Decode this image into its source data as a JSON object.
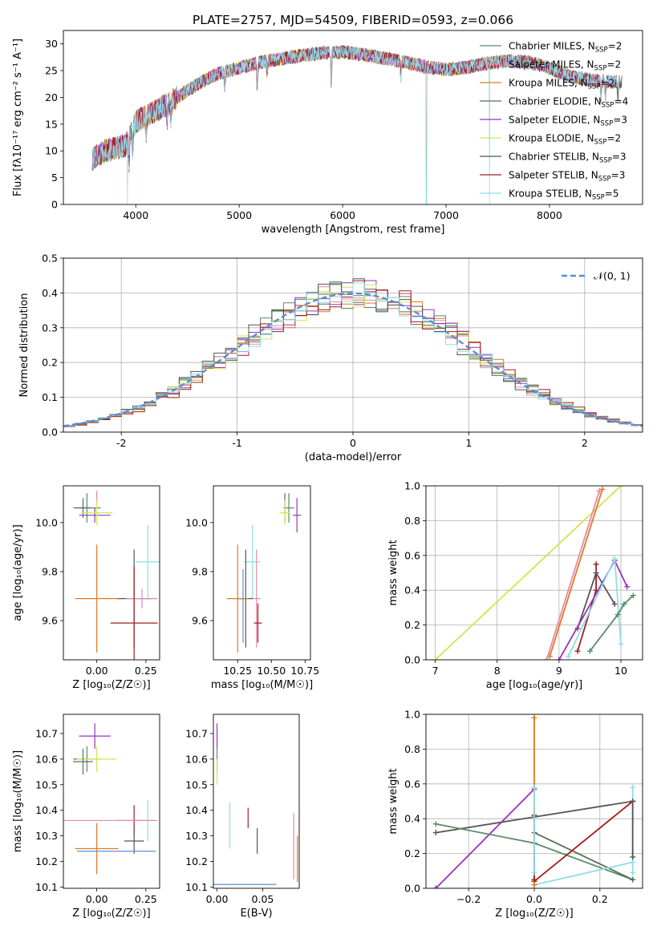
{
  "figure_title": "PLATE=2757, MJD=54509, FIBERID=0593, z=0.066",
  "colors": {
    "chabrier_miles": "#5a8c66",
    "salpeter_miles": "#e58aa8",
    "kroupa_miles": "#e07a22",
    "chabrier_elodie": "#54705a",
    "salpeter_elodie": "#9a32c0",
    "kroupa_elodie": "#cfe650",
    "chabrier_stelib": "#555555",
    "salpeter_stelib": "#a31d1d",
    "kroupa_stelib": "#8edde6",
    "normal_curve": "#5b8ed6"
  },
  "chart_data": [
    {
      "id": "spectrum",
      "type": "line",
      "xlabel": "wavelength [Angstrom, rest frame]",
      "ylabel": "Flux [fλ10⁻¹⁷ erg cm⁻² s⁻¹ A⁻¹]",
      "xlim": [
        3300,
        8900
      ],
      "ylim": [
        0,
        32.5
      ],
      "xticks": [
        4000,
        5000,
        6000,
        7000,
        8000
      ],
      "yticks": [
        0,
        5,
        10,
        15,
        20,
        25,
        30
      ],
      "continuum": [
        [
          3580,
          8.5
        ],
        [
          3700,
          10
        ],
        [
          3900,
          11
        ],
        [
          4000,
          15.5
        ],
        [
          4200,
          17.5
        ],
        [
          4400,
          20
        ],
        [
          4600,
          22.5
        ],
        [
          4800,
          24.5
        ],
        [
          5000,
          25.5
        ],
        [
          5200,
          26.5
        ],
        [
          5400,
          27.2
        ],
        [
          5600,
          27.8
        ],
        [
          5800,
          28.3
        ],
        [
          6000,
          28.5
        ],
        [
          6200,
          28.0
        ],
        [
          6400,
          27.3
        ],
        [
          6600,
          26.6
        ],
        [
          6800,
          25.7
        ],
        [
          7000,
          25.2
        ],
        [
          7200,
          25.6
        ],
        [
          7400,
          26.4
        ],
        [
          7600,
          26.8
        ],
        [
          7800,
          26.6
        ],
        [
          8000,
          25.5
        ],
        [
          8200,
          23.9
        ],
        [
          8400,
          23.2
        ],
        [
          8700,
          22.8
        ]
      ],
      "absorption": [
        [
          3934,
          5
        ],
        [
          3969,
          4
        ],
        [
          4101,
          3
        ],
        [
          4304,
          3
        ],
        [
          4340,
          3
        ],
        [
          4861,
          3
        ],
        [
          5175,
          5
        ],
        [
          5270,
          2
        ],
        [
          5890,
          6
        ],
        [
          6563,
          3
        ],
        [
          8498,
          3
        ],
        [
          8542,
          3
        ],
        [
          8662,
          3
        ]
      ],
      "glitches": [
        [
          3920,
          0
        ],
        [
          6810,
          0
        ],
        [
          7420,
          0
        ]
      ],
      "legend": [
        {
          "label": "Chabrier MILES, N",
          "sub": "SSP",
          "val": "=2",
          "color": "#5a8c66"
        },
        {
          "label": "Salpeter MILES, N",
          "sub": "SSP",
          "val": "=2",
          "color": "#e58aa8"
        },
        {
          "label": "Kroupa MILES, N",
          "sub": "SSP",
          "val": "=2",
          "color": "#e07a22"
        },
        {
          "label": "Chabrier ELODIE, N",
          "sub": "SSP",
          "val": "=4",
          "color": "#54705a"
        },
        {
          "label": "Salpeter ELODIE, N",
          "sub": "SSP",
          "val": "=3",
          "color": "#9a32c0"
        },
        {
          "label": "Kroupa ELODIE, N",
          "sub": "SSP",
          "val": "=2",
          "color": "#cfe650"
        },
        {
          "label": "Chabrier STELIB, N",
          "sub": "SSP",
          "val": "=3",
          "color": "#555555"
        },
        {
          "label": "Salpeter STELIB, N",
          "sub": "SSP",
          "val": "=3",
          "color": "#a31d1d"
        },
        {
          "label": "Kroupa STELIB, N",
          "sub": "SSP",
          "val": "=5",
          "color": "#8edde6"
        }
      ]
    },
    {
      "id": "residuals",
      "type": "histogram",
      "xlabel": "(data-model)/error",
      "ylabel": "Normed distribution",
      "xlim": [
        -2.5,
        2.5
      ],
      "ylim": [
        0,
        0.5
      ],
      "xticks": [
        -2,
        -1,
        0,
        1,
        2
      ],
      "yticks": [
        0.0,
        0.1,
        0.2,
        0.3,
        0.4,
        0.5
      ],
      "grid": true,
      "bin_width": 0.1,
      "legend_label": "𝒩(0, 1)"
    },
    {
      "id": "age-vs-z",
      "type": "errorbar",
      "xlabel": "Z [log₁₀(Z/Z☉)]",
      "ylabel": "age  [log₁₀(age/yr)]",
      "xlim": [
        -0.17,
        0.32
      ],
      "ylim": [
        9.44,
        10.15
      ],
      "xticks": [
        0.0,
        0.25
      ],
      "xticklabels": [
        "0.00",
        "0.25"
      ],
      "yticks": [
        9.6,
        9.8,
        10.0
      ],
      "yticklabels": [
        "9.6",
        "9.8",
        "10.0"
      ],
      "points": [
        {
          "x": -0.05,
          "xerr": 0.07,
          "y": 10.06,
          "yerr": 0.06,
          "color": "#5a8c66"
        },
        {
          "x": 0.0,
          "xerr": 0.0,
          "y": 10.1,
          "yerr": 0.03,
          "color": "#e58aa8"
        },
        {
          "x": -0.07,
          "xerr": 0.04,
          "y": 10.06,
          "yerr": 0.04,
          "color": "#54705a"
        },
        {
          "x": -0.01,
          "xerr": 0.08,
          "y": 10.03,
          "yerr": 0.03,
          "color": "#9a32c0"
        },
        {
          "x": 0.0,
          "xerr": 0.08,
          "y": 10.04,
          "yerr": 0.05,
          "color": "#cfe650"
        },
        {
          "x": 0.26,
          "xerr": 0.06,
          "y": 9.84,
          "yerr": 0.15,
          "color": "#8edde6"
        },
        {
          "x": 0.19,
          "xerr": 0.09,
          "y": 9.69,
          "yerr": 0.2,
          "color": "#555555"
        },
        {
          "x": 0.0,
          "xerr": 0.11,
          "y": 9.69,
          "yerr": 0.22,
          "color": "#e07a22"
        },
        {
          "x": 0.23,
          "xerr": 0.08,
          "y": 9.69,
          "yerr": 0.04,
          "color": "#e58aa8"
        },
        {
          "x": 0.19,
          "xerr": 0.12,
          "y": 9.59,
          "yerr": 0.23,
          "color": "#a31d1d"
        }
      ]
    },
    {
      "id": "age-vs-mass",
      "type": "errorbar",
      "xlabel": "mass [log₁₀(M/M☉)]",
      "ylabel": "",
      "xlim": [
        10.07,
        10.79
      ],
      "ylim": [
        9.44,
        10.15
      ],
      "xticks": [
        10.25,
        10.5,
        10.75
      ],
      "xticklabels": [
        "10.25",
        "10.50",
        "10.75"
      ],
      "yticks": [
        9.6,
        9.8,
        10.0
      ],
      "yticklabels": [
        "9.6",
        "9.8",
        "10.0"
      ],
      "points": [
        {
          "x": 10.63,
          "xerr": 0.04,
          "y": 10.06,
          "yerr": 0.06,
          "color": "#5a8c66"
        },
        {
          "x": 10.6,
          "xerr": 0.0,
          "y": 10.06,
          "yerr": 0.06,
          "color": "#54705a"
        },
        {
          "x": 10.69,
          "xerr": 0.03,
          "y": 10.03,
          "yerr": 0.07,
          "color": "#9a32c0"
        },
        {
          "x": 10.6,
          "xerr": 0.04,
          "y": 10.04,
          "yerr": 0.05,
          "color": "#cfe650"
        },
        {
          "x": 10.36,
          "xerr": 0.06,
          "y": 9.84,
          "yerr": 0.15,
          "color": "#8edde6"
        },
        {
          "x": 10.31,
          "xerr": 0.06,
          "y": 9.69,
          "yerr": 0.2,
          "color": "#555555"
        },
        {
          "x": 10.25,
          "xerr": 0.08,
          "y": 9.69,
          "yerr": 0.22,
          "color": "#e07a22"
        },
        {
          "x": 10.39,
          "xerr": 0.03,
          "y": 9.69,
          "yerr": 0.2,
          "color": "#e58aa8"
        },
        {
          "x": 10.29,
          "xerr": 0.0,
          "y": 9.66,
          "yerr": 0.15,
          "color": "#5b8ed6"
        },
        {
          "x": 10.4,
          "xerr": 0.03,
          "y": 9.59,
          "yerr": 0.08,
          "color": "#a31d1d"
        }
      ]
    },
    {
      "id": "weight-vs-age",
      "type": "line",
      "xlabel": "age  [log₁₀(age/yr)]",
      "ylabel": "mass weight",
      "xlim": [
        6.85,
        10.35
      ],
      "ylim": [
        0,
        1.0
      ],
      "xticks": [
        7,
        8,
        9,
        10
      ],
      "yticks": [
        0.0,
        0.2,
        0.4,
        0.6,
        0.8,
        1.0
      ],
      "grid": true,
      "series": [
        {
          "color": "#cfe650",
          "x": [
            7.0,
            10.0
          ],
          "y": [
            0.0,
            1.0
          ]
        },
        {
          "color": "#e07a22",
          "x": [
            8.85,
            9.7
          ],
          "y": [
            0.02,
            0.98
          ]
        },
        {
          "color": "#e58aa8",
          "x": [
            8.8,
            9.65
          ],
          "y": [
            0.0,
            0.97
          ]
        },
        {
          "color": "#a31d1d",
          "x": [
            9.3,
            9.6,
            9.6
          ],
          "y": [
            0.05,
            0.4,
            0.55
          ]
        },
        {
          "color": "#555555",
          "x": [
            9.3,
            9.6,
            9.9
          ],
          "y": [
            0.18,
            0.5,
            0.32
          ]
        },
        {
          "color": "#9a32c0",
          "x": [
            9.0,
            9.9,
            10.1
          ],
          "y": [
            0.0,
            0.57,
            0.42
          ]
        },
        {
          "color": "#8edde6",
          "x": [
            9.15,
            9.9,
            10.0
          ],
          "y": [
            0.02,
            0.58,
            0.09
          ]
        },
        {
          "color": "#5a8c66",
          "x": [
            9.5,
            9.95,
            10.05,
            10.2
          ],
          "y": [
            0.05,
            0.26,
            0.32,
            0.37
          ]
        }
      ]
    },
    {
      "id": "mass-vs-z",
      "type": "errorbar",
      "xlabel": "Z [log₁₀(Z/Z☉)]",
      "ylabel": "mass [log₁₀(M/M☉)]",
      "xlim": [
        -0.17,
        0.32
      ],
      "ylim": [
        10.095,
        10.775
      ],
      "xticks": [
        0.0,
        0.25
      ],
      "xticklabels": [
        "0.00",
        "0.25"
      ],
      "yticks": [
        10.1,
        10.2,
        10.3,
        10.4,
        10.5,
        10.6,
        10.7
      ],
      "yticklabels": [
        "10.1",
        "10.2",
        "10.3",
        "10.4",
        "10.5",
        "10.6",
        "10.7"
      ],
      "points": [
        {
          "x": -0.01,
          "xerr": 0.08,
          "y": 10.69,
          "yerr": 0.05,
          "color": "#9a32c0"
        },
        {
          "x": -0.05,
          "xerr": 0.07,
          "y": 10.6,
          "yerr": 0.05,
          "color": "#5a8c66"
        },
        {
          "x": 0.0,
          "xerr": 0.1,
          "y": 10.6,
          "yerr": 0.05,
          "color": "#cfe650"
        },
        {
          "x": -0.07,
          "xerr": 0.05,
          "y": 10.59,
          "yerr": 0.05,
          "color": "#54705a"
        },
        {
          "x": 0.19,
          "xerr": 0.1,
          "y": 10.36,
          "yerr": 0.06,
          "color": "#a31d1d"
        },
        {
          "x": 0.26,
          "xerr": 0.04,
          "y": 10.36,
          "yerr": 0.08,
          "color": "#8edde6"
        },
        {
          "x": 0.06,
          "xerr": 0.25,
          "y": 10.36,
          "yerr": 0.0,
          "color": "#e58aa8"
        },
        {
          "x": 0.19,
          "xerr": 0.05,
          "y": 10.28,
          "yerr": 0.05,
          "color": "#555555"
        },
        {
          "x": 0.0,
          "xerr": 0.11,
          "y": 10.25,
          "yerr": 0.1,
          "color": "#e07a22"
        },
        {
          "x": 0.1,
          "xerr": 0.2,
          "y": 10.24,
          "yerr": 0.0,
          "color": "#5b8ed6"
        }
      ]
    },
    {
      "id": "mass-vs-ebv",
      "type": "errorbar",
      "xlabel": "E(B-V)",
      "ylabel": "",
      "xlim": [
        -0.004,
        0.09
      ],
      "ylim": [
        10.095,
        10.775
      ],
      "xticks": [
        0.0,
        0.05
      ],
      "xticklabels": [
        "0.00",
        "0.05"
      ],
      "yticks": [
        10.1,
        10.2,
        10.3,
        10.4,
        10.5,
        10.6,
        10.7
      ],
      "yticklabels": [
        "10.1",
        "10.2",
        "10.3",
        "10.4",
        "10.5",
        "10.6",
        "10.7"
      ],
      "points": [
        {
          "x": 0.0,
          "xerr": 0.0,
          "y": 10.69,
          "yerr": 0.05,
          "color": "#9a32c0"
        },
        {
          "x": 0.0,
          "xerr": 0.0,
          "y": 10.6,
          "yerr": 0.05,
          "color": "#5a8c66"
        },
        {
          "x": 0.0,
          "xerr": 0.0,
          "y": 10.55,
          "yerr": 0.05,
          "color": "#cfe650"
        },
        {
          "x": 0.014,
          "xerr": 0.0,
          "y": 10.34,
          "yerr": 0.09,
          "color": "#8edde6"
        },
        {
          "x": 0.034,
          "xerr": 0.0,
          "y": 10.37,
          "yerr": 0.04,
          "color": "#a31d1d"
        },
        {
          "x": 0.044,
          "xerr": 0.0,
          "y": 10.28,
          "yerr": 0.05,
          "color": "#555555"
        },
        {
          "x": 0.084,
          "xerr": 0.0,
          "y": 10.26,
          "yerr": 0.13,
          "color": "#e58aa8"
        },
        {
          "x": 0.088,
          "xerr": 0.0,
          "y": 10.21,
          "yerr": 0.09,
          "color": "#e07a22"
        },
        {
          "x": 0.03,
          "xerr": 0.035,
          "y": 10.11,
          "yerr": 0.0,
          "color": "#5b8ed6"
        }
      ]
    },
    {
      "id": "weight-vs-z",
      "type": "line",
      "xlabel": "Z [log₁₀(Z/Z☉)]",
      "ylabel": "mass weight",
      "xlim": [
        -0.33,
        0.33
      ],
      "ylim": [
        0,
        1.0
      ],
      "xticks": [
        -0.2,
        0.0,
        0.2
      ],
      "xticklabels": [
        "−0.2",
        "0.0",
        "0.2"
      ],
      "yticks": [
        0.0,
        0.2,
        0.4,
        0.6,
        0.8,
        1.0
      ],
      "grid": true,
      "series": [
        {
          "color": "#9a32c0",
          "x": [
            -0.3,
            0.0
          ],
          "y": [
            0.0,
            0.57
          ]
        },
        {
          "color": "#555555",
          "x": [
            -0.3,
            0.3
          ],
          "y": [
            0.32,
            0.5
          ]
        },
        {
          "color": "#5a8c66",
          "x": [
            -0.3,
            0.0,
            0.3
          ],
          "y": [
            0.37,
            0.26,
            0.05
          ]
        },
        {
          "color": "#54705a",
          "x": [
            0.0,
            0.3
          ],
          "y": [
            0.32,
            0.05
          ]
        },
        {
          "color": "#a31d1d",
          "x": [
            0.0,
            0.3
          ],
          "y": [
            0.04,
            0.5
          ]
        },
        {
          "color": "#8edde6",
          "x": [
            0.0,
            0.3
          ],
          "y": [
            0.02,
            0.15
          ]
        },
        {
          "color": "#cfe650",
          "x": [
            0.0,
            0.0
          ],
          "y": [
            0.0,
            1.0
          ]
        },
        {
          "color": "#e07a22",
          "x": [
            0.0,
            0.0
          ],
          "y": [
            0.02,
            0.98
          ]
        },
        {
          "color": "#a31d1d",
          "x": [
            0.0,
            0.0
          ],
          "y": [
            0.05,
            0.42
          ]
        },
        {
          "color": "#8edde6",
          "x": [
            0.3,
            0.3
          ],
          "y": [
            0.09,
            0.58
          ]
        },
        {
          "color": "#555555",
          "x": [
            0.3,
            0.3
          ],
          "y": [
            0.18,
            0.5
          ]
        },
        {
          "color": "#8edde6",
          "x": [
            0.0,
            0.0
          ],
          "y": [
            0.09,
            0.58
          ]
        }
      ]
    }
  ]
}
